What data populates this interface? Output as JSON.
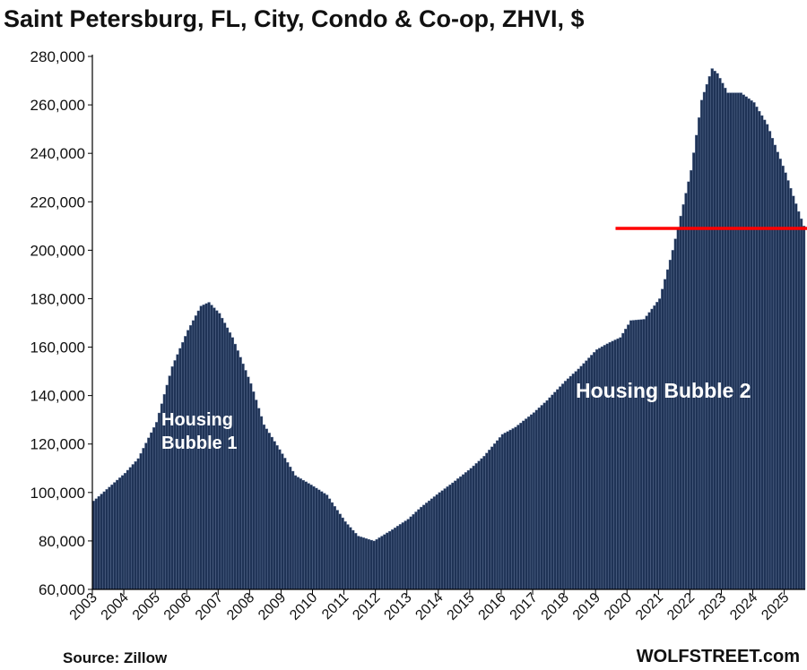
{
  "chart_data": {
    "type": "bar",
    "title": "Saint Petersburg, FL, City, Condo & Co-op, ZHVI, $",
    "xlabel": "",
    "ylabel": "",
    "ylim": [
      60000,
      280000
    ],
    "yticks": [
      "60,000",
      "80,000",
      "100,000",
      "120,000",
      "140,000",
      "160,000",
      "180,000",
      "200,000",
      "220,000",
      "240,000",
      "260,000",
      "280,000"
    ],
    "ytick_values": [
      60000,
      80000,
      100000,
      120000,
      140000,
      160000,
      180000,
      200000,
      220000,
      240000,
      260000,
      280000
    ],
    "xticks": [
      "2003",
      "2004",
      "2005",
      "2006",
      "2007",
      "2008",
      "2009",
      "2010",
      "2011",
      "2012",
      "2013",
      "2014",
      "2015",
      "2016",
      "2017",
      "2018",
      "2019",
      "2020",
      "2021",
      "2022",
      "2023",
      "2024",
      "2025"
    ],
    "x_start": "2003-01",
    "x_end": "2025-08",
    "series": [
      {
        "frequency": "monthly",
        "color": "#1f3356",
        "anchors": [
          [
            "2003-01",
            96500
          ],
          [
            "2004-01",
            108000
          ],
          [
            "2004-06",
            114000
          ],
          [
            "2005-01",
            129000
          ],
          [
            "2005-07",
            152000
          ],
          [
            "2006-01",
            167000
          ],
          [
            "2006-06",
            177000
          ],
          [
            "2006-09",
            178500
          ],
          [
            "2007-01",
            174000
          ],
          [
            "2007-06",
            164000
          ],
          [
            "2008-01",
            145000
          ],
          [
            "2008-06",
            128000
          ],
          [
            "2009-01",
            116000
          ],
          [
            "2009-06",
            107000
          ],
          [
            "2010-01",
            102500
          ],
          [
            "2010-06",
            99000
          ],
          [
            "2011-01",
            88000
          ],
          [
            "2011-06",
            82000
          ],
          [
            "2011-12",
            80000
          ],
          [
            "2012-06",
            84000
          ],
          [
            "2013-01",
            89000
          ],
          [
            "2013-06",
            94000
          ],
          [
            "2014-01",
            100000
          ],
          [
            "2014-06",
            104000
          ],
          [
            "2015-01",
            110000
          ],
          [
            "2015-06",
            115000
          ],
          [
            "2016-01",
            124000
          ],
          [
            "2016-06",
            127000
          ],
          [
            "2017-01",
            133000
          ],
          [
            "2017-06",
            138000
          ],
          [
            "2018-01",
            146000
          ],
          [
            "2018-06",
            151000
          ],
          [
            "2019-01",
            159000
          ],
          [
            "2019-06",
            162000
          ],
          [
            "2019-10",
            164000
          ],
          [
            "2020-02",
            171000
          ],
          [
            "2020-07",
            171500
          ],
          [
            "2021-01",
            180000
          ],
          [
            "2021-06",
            200000
          ],
          [
            "2022-01",
            233000
          ],
          [
            "2022-05",
            262000
          ],
          [
            "2022-09",
            275000
          ],
          [
            "2022-11",
            273000
          ],
          [
            "2023-03",
            265000
          ],
          [
            "2023-08",
            265000
          ],
          [
            "2024-01",
            261000
          ],
          [
            "2024-06",
            252000
          ],
          [
            "2025-01",
            232000
          ],
          [
            "2025-06",
            216000
          ],
          [
            "2025-08",
            210000
          ]
        ]
      }
    ],
    "annotations": [
      {
        "text_lines": [
          "Housing",
          "Bubble 1"
        ]
      },
      {
        "text_lines": [
          "Housing Bubble 2"
        ]
      }
    ],
    "reference_line": {
      "value": 209000,
      "from": "2019-10",
      "to": "2025-08",
      "color": "#ff0000"
    },
    "grid": false,
    "legend": "none"
  },
  "footer": {
    "source": "Source: Zillow",
    "brand": "WOLFSTREET.com"
  }
}
